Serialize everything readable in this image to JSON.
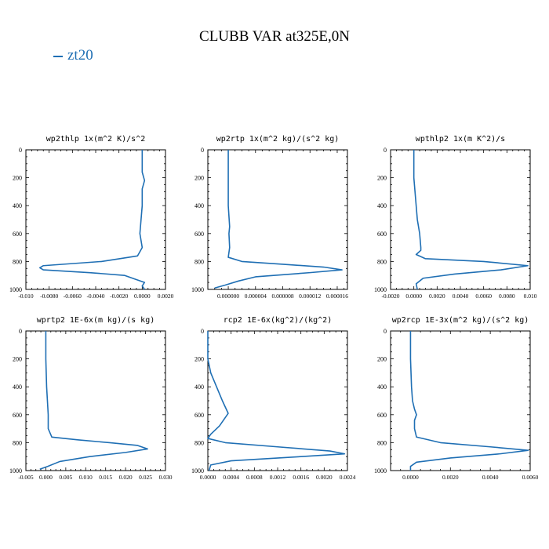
{
  "title": "CLUBB VAR at325E,0N",
  "legend": {
    "label": "zt20",
    "color": "#1f6fb4"
  },
  "chart_data": [
    {
      "type": "line",
      "title": "wp2thlp   1x(m^2 K)/s^2",
      "xlim": [
        -0.01,
        0.002
      ],
      "xticks": [
        -0.01,
        -0.008,
        -0.006,
        -0.004,
        -0.002,
        0.0,
        0.002
      ],
      "xtick_labels": [
        "-0.010",
        "-0.0080",
        "-0.0060",
        "-0.0040",
        "-0.0020",
        "0.0000",
        "0.0020"
      ],
      "ylim": [
        1000,
        0
      ],
      "yticks": [
        0,
        200,
        400,
        600,
        800,
        1000
      ],
      "series": [
        {
          "color": "#1f6fb4",
          "x": [
            0.0,
            0.0,
            0.0002,
            0.0,
            0.0,
            -0.0001,
            -0.0002,
            0.0,
            -0.0004,
            -0.0035,
            -0.0085,
            -0.0088,
            -0.0085,
            -0.0045,
            -0.0015,
            -0.0005,
            0.0002,
            0.0,
            0.0002
          ],
          "y": [
            0,
            160,
            220,
            280,
            400,
            500,
            600,
            700,
            760,
            800,
            830,
            845,
            860,
            880,
            900,
            930,
            950,
            975,
            1000
          ]
        }
      ]
    },
    {
      "type": "line",
      "title": "wp2rtp   1x(m^2 kg)/(s^2 kg)",
      "xlim": [
        -3e-06,
        1.75e-05
      ],
      "xticks": [
        0.0,
        4e-06,
        8e-06,
        1.2e-05,
        1.6e-05
      ],
      "xtick_labels": [
        "0.000000",
        "0.000004",
        "0.000008",
        "0.000012",
        "0.000016"
      ],
      "ylim": [
        1000,
        0
      ],
      "yticks": [
        0,
        200,
        400,
        600,
        800,
        1000
      ],
      "series": [
        {
          "color": "#1f6fb4",
          "x": [
            0.0,
            0.0,
            0.0,
            2e-07,
            1e-07,
            2e-07,
            0.0,
            2e-06,
            8e-06,
            1.4e-05,
            1.67e-05,
            1.2e-05,
            4e-06,
            1.5e-06,
            -5e-07,
            -2e-06
          ],
          "y": [
            0,
            200,
            400,
            550,
            600,
            700,
            770,
            800,
            820,
            840,
            860,
            880,
            910,
            940,
            970,
            990
          ]
        }
      ]
    },
    {
      "type": "line",
      "title": "wpthlp2   1x(m K^2)/s",
      "xlim": [
        -0.002,
        0.01
      ],
      "xticks": [
        -0.002,
        0.0,
        0.002,
        0.004,
        0.006,
        0.008,
        0.01
      ],
      "xtick_labels": [
        "-0.0020",
        "0.0000",
        "0.0020",
        "0.0040",
        "0.0060",
        "0.0080",
        "0.010"
      ],
      "ylim": [
        1000,
        0
      ],
      "yticks": [
        0,
        200,
        400,
        600,
        800,
        1000
      ],
      "series": [
        {
          "color": "#1f6fb4",
          "x": [
            0.0,
            0.0,
            0.0002,
            0.0003,
            0.0005,
            0.0006,
            0.0006,
            0.0002,
            0.001,
            0.006,
            0.0098,
            0.0075,
            0.0035,
            0.0008,
            0.0002,
            0.0003
          ],
          "y": [
            0,
            200,
            400,
            500,
            600,
            700,
            720,
            750,
            780,
            800,
            830,
            860,
            890,
            920,
            960,
            1000
          ]
        }
      ]
    },
    {
      "type": "line",
      "title": "wprtp2   1E-6x(m kg)/(s kg)",
      "xlim": [
        -0.005,
        0.03
      ],
      "xticks": [
        -0.005,
        0.0,
        0.005,
        0.01,
        0.015,
        0.02,
        0.025,
        0.03
      ],
      "xtick_labels": [
        "-0.005",
        "0.000",
        "0.005",
        "0.010",
        "0.015",
        "0.020",
        "0.025",
        "0.030"
      ],
      "ylim": [
        1000,
        0
      ],
      "yticks": [
        0,
        200,
        400,
        600,
        800,
        1000
      ],
      "series": [
        {
          "color": "#1f6fb4",
          "x": [
            0.0,
            0.0,
            0.0002,
            0.0004,
            0.0006,
            0.0006,
            0.0015,
            0.008,
            0.016,
            0.023,
            0.0255,
            0.02,
            0.011,
            0.0035,
            0.0005,
            -0.0015
          ],
          "y": [
            0,
            200,
            400,
            500,
            600,
            700,
            760,
            780,
            800,
            820,
            845,
            870,
            900,
            935,
            970,
            990
          ]
        }
      ]
    },
    {
      "type": "line",
      "title": "rcp2   1E-6x(kg^2)/(kg^2)",
      "xlim": [
        0.0,
        0.0024
      ],
      "xticks": [
        0.0,
        0.0004,
        0.0008,
        0.0012,
        0.0016,
        0.002,
        0.0024
      ],
      "xtick_labels": [
        "0.0000",
        "0.0004",
        "0.0008",
        "0.0012",
        "0.0016",
        "0.0020",
        "0.0024"
      ],
      "ylim": [
        1000,
        0
      ],
      "yticks": [
        0,
        200,
        400,
        600,
        800,
        1000
      ],
      "series": [
        {
          "color": "#1f6fb4",
          "x": [
            0.0,
            0.0,
            5e-05,
            0.00015,
            0.00025,
            0.00035,
            0.0002,
            5e-05,
            0.0,
            0.0003,
            0.0012,
            0.0021,
            0.00235,
            0.0016,
            0.0004,
            5e-05,
            2e-05
          ],
          "y": [
            0,
            200,
            300,
            400,
            500,
            590,
            680,
            740,
            770,
            800,
            830,
            860,
            880,
            900,
            930,
            960,
            1000
          ]
        }
      ]
    },
    {
      "type": "line",
      "title": "wp2rcp   1E-3x(m^2 kg)/(s^2 kg)",
      "xlim": [
        -0.001,
        0.006
      ],
      "xticks": [
        0.0,
        0.002,
        0.004,
        0.006
      ],
      "xtick_labels": [
        "0.0000",
        "0.0020",
        "0.0040",
        "0.0060"
      ],
      "ylim": [
        1000,
        0
      ],
      "yticks": [
        0,
        200,
        400,
        600,
        800,
        1000
      ],
      "series": [
        {
          "color": "#1f6fb4",
          "x": [
            0.0,
            0.0,
            5e-05,
            0.0001,
            0.0002,
            0.0003,
            0.0002,
            0.0002,
            0.0003,
            0.0015,
            0.004,
            0.0059,
            0.0045,
            0.002,
            0.0003,
            0.0,
            0.0
          ],
          "y": [
            0,
            200,
            400,
            500,
            560,
            600,
            640,
            700,
            760,
            800,
            830,
            855,
            880,
            910,
            940,
            970,
            1000
          ]
        }
      ]
    }
  ]
}
